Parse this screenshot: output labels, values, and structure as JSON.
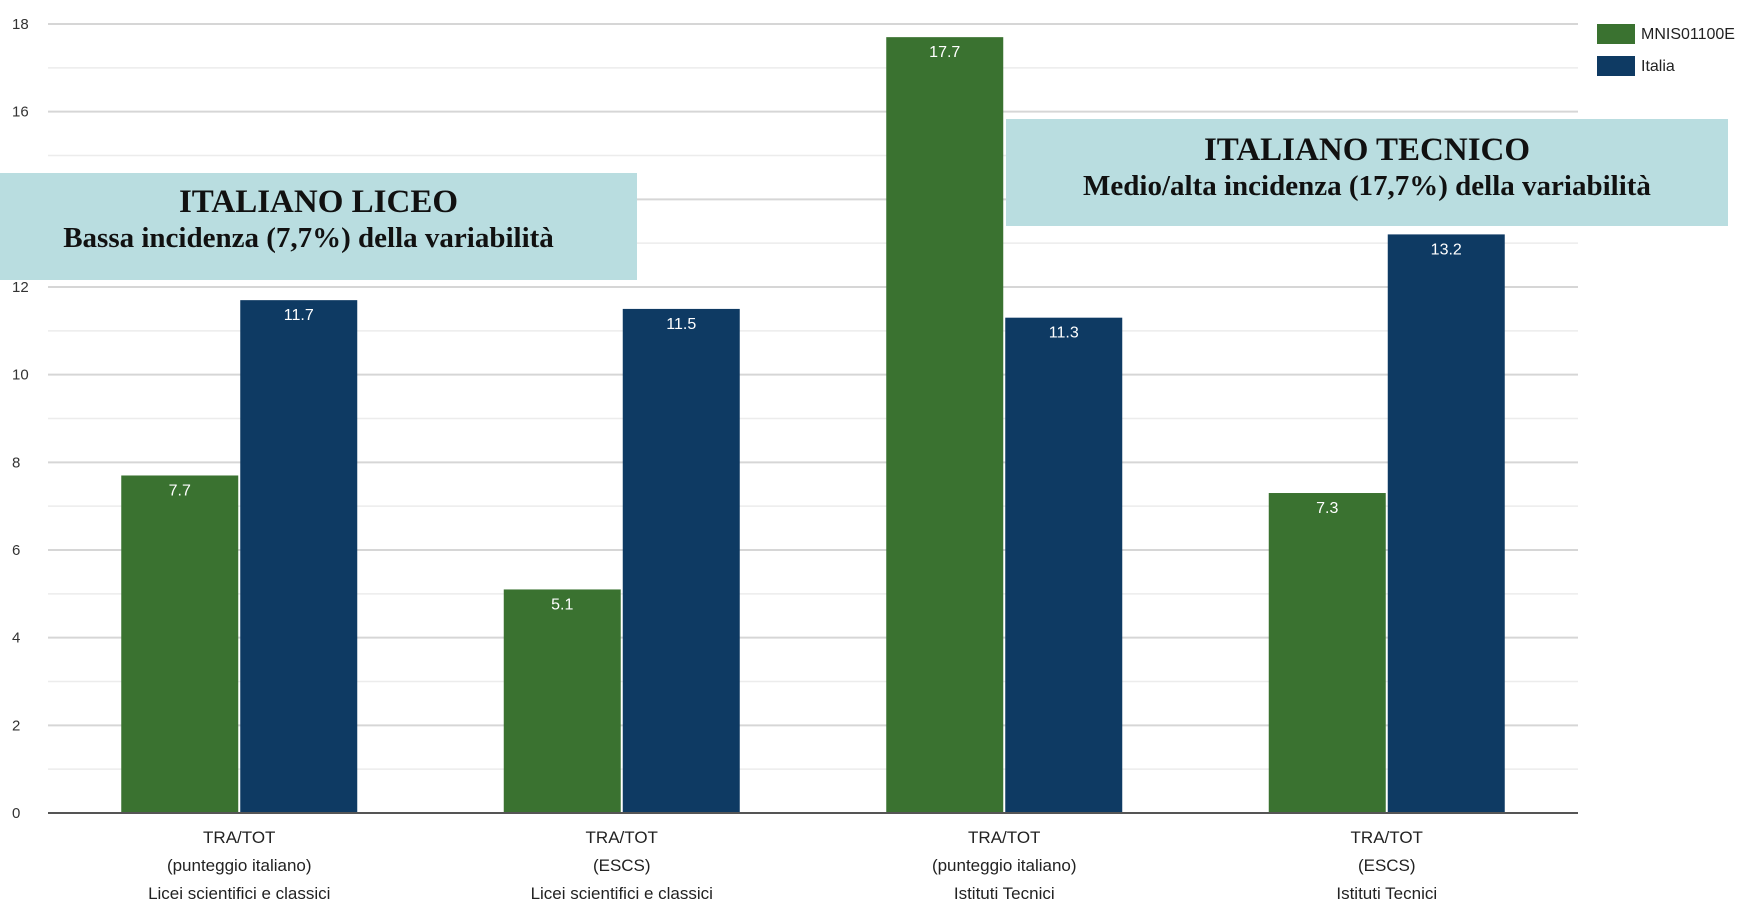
{
  "chart_data": {
    "type": "bar",
    "title": "",
    "xlabel": "",
    "ylabel": "",
    "ylim": [
      0,
      18
    ],
    "yticks": [
      0,
      2,
      4,
      6,
      8,
      10,
      12,
      14,
      16,
      18
    ],
    "ytick_labels": [
      "0",
      "2",
      "4",
      "6",
      "8",
      "10",
      "12",
      "",
      "16",
      "18"
    ],
    "grid": true,
    "legend_position": "top-right",
    "categories": [
      [
        "TRA/TOT",
        "(punteggio italiano)",
        "Licei scientifici e classici"
      ],
      [
        "TRA/TOT",
        "(ESCS)",
        "Licei scientifici e classici"
      ],
      [
        "TRA/TOT",
        "(punteggio italiano)",
        "Istituti Tecnici"
      ],
      [
        "TRA/TOT",
        "(ESCS)",
        "Istituti Tecnici"
      ]
    ],
    "series": [
      {
        "name": "MNIS01100E",
        "color": "#3a7230",
        "values": [
          7.7,
          5.1,
          17.7,
          7.3
        ],
        "labels": [
          "7.7",
          "5.1",
          "17.7",
          "7.3"
        ]
      },
      {
        "name": "Italia",
        "color": "#0e3a63",
        "values": [
          11.7,
          11.5,
          11.3,
          13.2
        ],
        "labels": [
          "11.7",
          "11.5",
          "11.3",
          "13.2"
        ]
      }
    ],
    "annotations": [
      {
        "title": "ITALIANO LICEO",
        "subtitle": "Bassa incidenza (7,7%) della variabilità"
      },
      {
        "title": "ITALIANO TECNICO",
        "subtitle": "Medio/alta incidenza (17,7%) della variabilità"
      }
    ]
  }
}
